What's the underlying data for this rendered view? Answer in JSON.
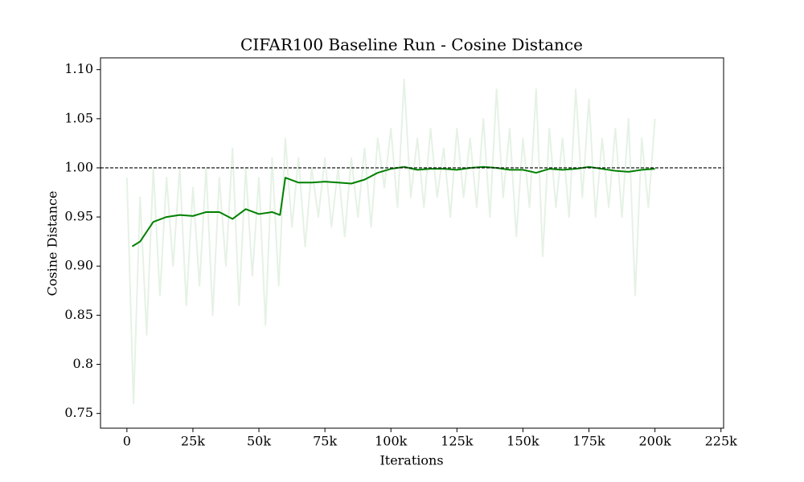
{
  "chart_data": {
    "type": "line",
    "title": "CIFAR100 Baseline Run - Cosine Distance",
    "x_label": "Iterations",
    "y_label": "Cosine Distance",
    "xlim": [
      -10000,
      226000
    ],
    "ylim": [
      0.735,
      1.112
    ],
    "xticks": [
      0,
      {
        "value": 25000,
        "label": "25k"
      },
      {
        "value": 50000,
        "label": "50k"
      },
      {
        "value": 75000,
        "label": "75k"
      },
      {
        "value": 100000,
        "label": "100k"
      },
      {
        "value": 125000,
        "label": "125k"
      },
      {
        "value": 150000,
        "label": "150k"
      },
      {
        "value": 175000,
        "label": "175k"
      },
      {
        "value": 200000,
        "label": "200k"
      },
      {
        "value": 225000,
        "label": "225k"
      }
    ],
    "yticks": [
      0.75,
      0.8,
      0.85,
      {
        "value": 0.9,
        "label": "0.90"
      },
      0.95,
      {
        "value": 1.0,
        "label": "1.00"
      },
      1.05,
      {
        "value": 1.1,
        "label": "1.10"
      }
    ],
    "hline": 1.0,
    "series": [
      {
        "color": "#008000",
        "opacity": 0.1,
        "x": [
          0,
          2500,
          5000,
          7500,
          10000,
          12500,
          15000,
          17500,
          20000,
          22500,
          25000,
          27500,
          30000,
          32500,
          35000,
          37500,
          40000,
          42500,
          45000,
          47500,
          50000,
          52500,
          55000,
          57500,
          60000,
          62500,
          65000,
          67500,
          70000,
          72500,
          75000,
          77500,
          80000,
          82500,
          85000,
          87500,
          90000,
          92500,
          95000,
          97500,
          100000,
          102500,
          105000,
          107500,
          110000,
          112500,
          115000,
          117500,
          120000,
          122500,
          125000,
          127500,
          130000,
          132500,
          135000,
          137500,
          140000,
          142500,
          145000,
          147500,
          150000,
          152500,
          155000,
          157500,
          160000,
          162500,
          165000,
          167500,
          170000,
          172500,
          175000,
          177500,
          180000,
          182500,
          185000,
          187500,
          190000,
          192500,
          195000,
          197500,
          200000
        ],
        "values": [
          0.99,
          0.76,
          0.97,
          0.83,
          1.0,
          0.87,
          0.99,
          0.9,
          1.0,
          0.86,
          0.98,
          0.88,
          1.0,
          0.85,
          0.99,
          0.9,
          1.02,
          0.86,
          1.0,
          0.89,
          0.99,
          0.84,
          1.01,
          0.88,
          1.03,
          0.94,
          1.01,
          0.92,
          1.0,
          0.95,
          1.01,
          0.94,
          1.0,
          0.93,
          1.01,
          0.95,
          1.02,
          0.94,
          1.03,
          0.98,
          1.04,
          0.96,
          1.09,
          0.97,
          1.03,
          0.96,
          1.04,
          0.97,
          1.02,
          0.95,
          1.04,
          0.97,
          1.03,
          0.96,
          1.05,
          0.95,
          1.08,
          0.97,
          1.04,
          0.93,
          1.03,
          0.96,
          1.08,
          0.91,
          1.04,
          0.96,
          1.03,
          0.95,
          1.08,
          0.97,
          1.07,
          0.95,
          1.03,
          0.96,
          1.04,
          0.95,
          1.05,
          0.87,
          1.03,
          0.96,
          1.05
        ]
      },
      {
        "color": "#008000",
        "opacity": 1,
        "x": [
          2000,
          5000,
          10000,
          15000,
          20000,
          25000,
          30000,
          35000,
          40000,
          45000,
          50000,
          55000,
          58000,
          60000,
          65000,
          70000,
          75000,
          80000,
          85000,
          90000,
          95000,
          100000,
          105000,
          110000,
          115000,
          120000,
          125000,
          130000,
          135000,
          140000,
          145000,
          150000,
          155000,
          160000,
          165000,
          170000,
          175000,
          180000,
          185000,
          190000,
          195000,
          200000
        ],
        "values": [
          0.92,
          0.925,
          0.945,
          0.95,
          0.952,
          0.951,
          0.955,
          0.955,
          0.948,
          0.958,
          0.953,
          0.955,
          0.952,
          0.99,
          0.985,
          0.985,
          0.986,
          0.985,
          0.984,
          0.988,
          0.995,
          0.999,
          1.001,
          0.998,
          0.999,
          0.999,
          0.998,
          1.0,
          1.001,
          1.0,
          0.998,
          0.998,
          0.995,
          0.999,
          0.998,
          0.999,
          1.001,
          0.999,
          0.997,
          0.996,
          0.998,
          0.999
        ]
      }
    ]
  }
}
